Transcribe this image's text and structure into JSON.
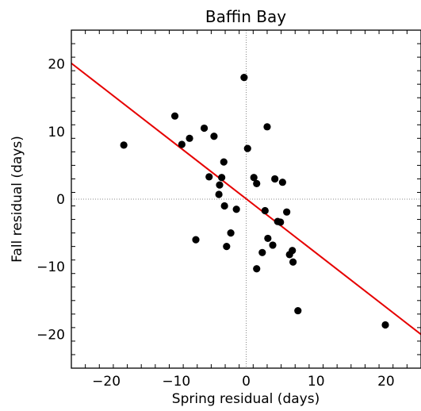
{
  "chart_data": {
    "type": "scatter",
    "title": "Baffin Bay",
    "xlabel": "Spring residual (days)",
    "ylabel": "Fall residual (days)",
    "xlim": [
      -25,
      25
    ],
    "ylim": [
      -25,
      25
    ],
    "x_major_ticks": [
      -20,
      -10,
      0,
      10,
      20
    ],
    "y_major_ticks": [
      -20,
      -10,
      0,
      10,
      20
    ],
    "grid": false,
    "zero_lines": true,
    "colors": {
      "points": "#000000",
      "fit_line": "#e60000",
      "zero_lines": "#888888"
    },
    "points": [
      {
        "x": -17.5,
        "y": 8.0
      },
      {
        "x": -10.2,
        "y": 12.3
      },
      {
        "x": -9.2,
        "y": 8.1
      },
      {
        "x": -8.1,
        "y": 9.0
      },
      {
        "x": -7.2,
        "y": -6.0
      },
      {
        "x": -6.0,
        "y": 10.5
      },
      {
        "x": -5.3,
        "y": 3.3
      },
      {
        "x": -4.6,
        "y": 9.3
      },
      {
        "x": -3.9,
        "y": 0.7
      },
      {
        "x": -3.8,
        "y": 2.1
      },
      {
        "x": -3.5,
        "y": 3.2
      },
      {
        "x": -3.2,
        "y": 5.5
      },
      {
        "x": -3.1,
        "y": -1.0
      },
      {
        "x": -2.8,
        "y": -7.0
      },
      {
        "x": -2.2,
        "y": -5.0
      },
      {
        "x": -1.4,
        "y": -1.5
      },
      {
        "x": -0.3,
        "y": 18.0
      },
      {
        "x": 0.2,
        "y": 7.5
      },
      {
        "x": 1.1,
        "y": 3.2
      },
      {
        "x": 1.5,
        "y": 2.3
      },
      {
        "x": 1.5,
        "y": -10.3
      },
      {
        "x": 2.3,
        "y": -7.9
      },
      {
        "x": 2.7,
        "y": -1.7
      },
      {
        "x": 3.0,
        "y": 10.7
      },
      {
        "x": 3.1,
        "y": -5.8
      },
      {
        "x": 3.8,
        "y": -6.8
      },
      {
        "x": 4.1,
        "y": 3.0
      },
      {
        "x": 4.5,
        "y": -3.3
      },
      {
        "x": 4.9,
        "y": -3.4
      },
      {
        "x": 5.2,
        "y": 2.5
      },
      {
        "x": 5.8,
        "y": -1.9
      },
      {
        "x": 6.2,
        "y": -8.2
      },
      {
        "x": 6.6,
        "y": -7.6
      },
      {
        "x": 6.7,
        "y": -9.3
      },
      {
        "x": 7.4,
        "y": -16.5
      },
      {
        "x": 19.9,
        "y": -18.6
      }
    ],
    "fit_line": {
      "x": [
        -25,
        25
      ],
      "y": [
        20.1,
        -20.0
      ]
    }
  }
}
